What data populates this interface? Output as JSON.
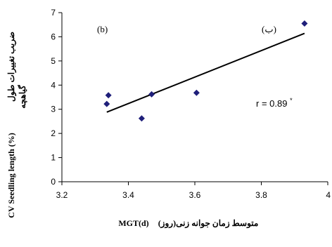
{
  "chart_data": {
    "type": "scatter",
    "x": [
      3.335,
      3.34,
      3.44,
      3.47,
      3.605,
      3.93
    ],
    "y": [
      3.22,
      3.58,
      2.62,
      3.62,
      3.68,
      6.55
    ],
    "trendline": {
      "x": [
        3.335,
        3.93
      ],
      "y": [
        2.88,
        6.14
      ]
    },
    "xlim": [
      3.2,
      4.0
    ],
    "ylim": [
      0,
      7
    ],
    "xticks": [
      3.2,
      3.4,
      3.6,
      3.8,
      4
    ],
    "yticks": [
      0,
      1,
      2,
      3,
      4,
      5,
      6,
      7
    ],
    "xtick_labels": [
      "3.2",
      "3.4",
      "3.6",
      "3.8",
      "4"
    ],
    "ytick_labels": [
      "0",
      "1",
      "2",
      "3",
      "4",
      "5",
      "6",
      "7"
    ],
    "xlabel_latin": "MGT(d)",
    "xlabel_arabic": "متوسط زمان جوانه زنی(روز)",
    "ylabel_latin": "CV Seedling length (%)",
    "ylabel_arabic_line1": "ضریب تغییرات طول",
    "ylabel_arabic_line2": "گیاهچه",
    "panel_label_latin": "(b)",
    "panel_label_arabic": "(ب)",
    "r_text": "r = 0.89",
    "r_superscript": "*",
    "marker_color": "#1f1f7a",
    "line_color": "#000000",
    "grid": false
  }
}
